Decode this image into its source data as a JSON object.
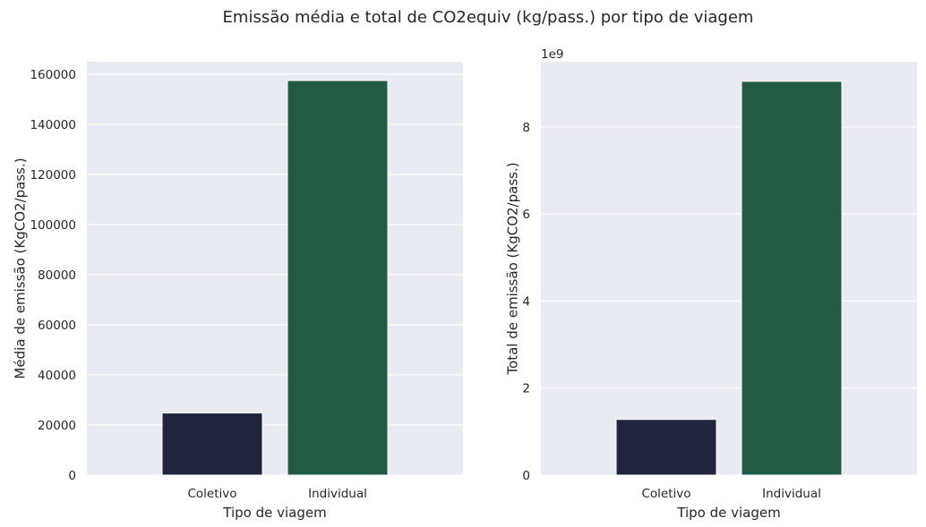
{
  "suptitle": "Emissão média e total de CO2equiv (kg/pass.) por tipo de viagem",
  "colors": {
    "panel_background": "#EAEAF2",
    "grid": "#FFFFFF",
    "coletivo": "#20253D",
    "individual": "#235A43"
  },
  "chart_data": [
    {
      "type": "bar",
      "categories": [
        "Coletivo",
        "Individual"
      ],
      "values": [
        24800,
        157500
      ],
      "xlabel": "Tipo de viagem",
      "ylabel": "Média de emissão (KgCO2/pass.)",
      "ylim": [
        0,
        165000
      ],
      "yticks": [
        0,
        20000,
        40000,
        60000,
        80000,
        100000,
        120000,
        140000,
        160000
      ],
      "ytick_labels": [
        "0",
        "20000",
        "40000",
        "60000",
        "80000",
        "100000",
        "120000",
        "140000",
        "160000"
      ],
      "grid": true
    },
    {
      "type": "bar",
      "categories": [
        "Coletivo",
        "Individual"
      ],
      "values": [
        1.28,
        9.05
      ],
      "offset_label": "1e9",
      "xlabel": "Tipo de viagem",
      "ylabel": "Total de emissão (KgCO2/pass.)",
      "ylim": [
        0,
        9.5
      ],
      "yticks": [
        0,
        2,
        4,
        6,
        8
      ],
      "ytick_labels": [
        "0",
        "2",
        "4",
        "6",
        "8"
      ],
      "grid": true
    }
  ]
}
